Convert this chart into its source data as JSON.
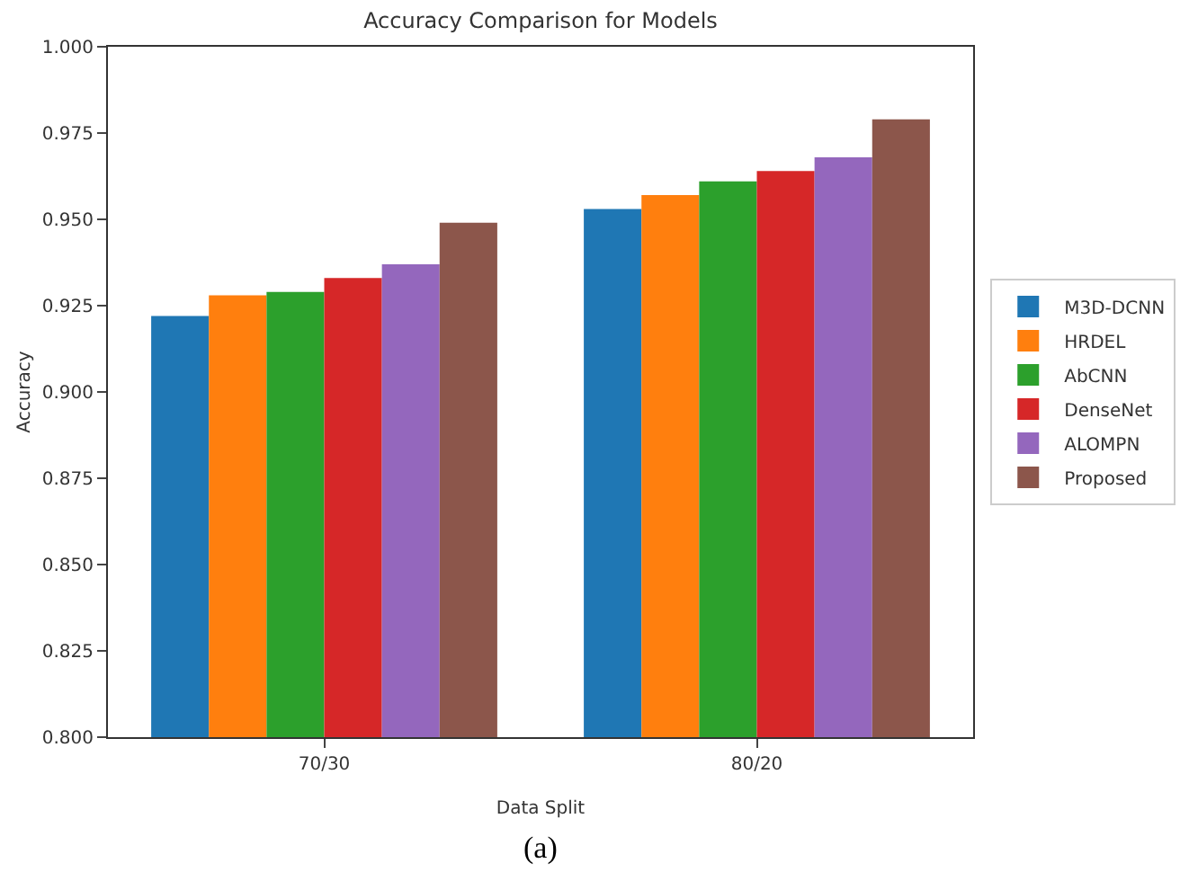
{
  "chart_data": {
    "type": "bar",
    "title": "Accuracy Comparison for Models",
    "xlabel": "Data Split",
    "ylabel": "Accuracy",
    "categories": [
      "70/30",
      "80/20"
    ],
    "series": [
      {
        "name": "M3D-DCNN",
        "color": "#1f77b4",
        "values": [
          0.922,
          0.953
        ]
      },
      {
        "name": "HRDEL",
        "color": "#ff7f0e",
        "values": [
          0.928,
          0.957
        ]
      },
      {
        "name": "AbCNN",
        "color": "#2ca02c",
        "values": [
          0.929,
          0.961
        ]
      },
      {
        "name": "DenseNet",
        "color": "#d62728",
        "values": [
          0.933,
          0.964
        ]
      },
      {
        "name": "ALOMPN",
        "color": "#9467bd",
        "values": [
          0.937,
          0.968
        ]
      },
      {
        "name": "Proposed",
        "color": "#8c564b",
        "values": [
          0.949,
          0.979
        ]
      }
    ],
    "ylim": [
      0.8,
      1.0
    ],
    "yticks": [
      {
        "value": 0.8,
        "label": "0.800"
      },
      {
        "value": 0.825,
        "label": "0.825"
      },
      {
        "value": 0.85,
        "label": "0.850"
      },
      {
        "value": 0.875,
        "label": "0.875"
      },
      {
        "value": 0.9,
        "label": "0.900"
      },
      {
        "value": 0.925,
        "label": "0.925"
      },
      {
        "value": 0.95,
        "label": "0.950"
      },
      {
        "value": 0.975,
        "label": "0.975"
      },
      {
        "value": 1.0,
        "label": "1.000"
      }
    ],
    "legend": "right",
    "annotations": [
      "(a)"
    ]
  }
}
